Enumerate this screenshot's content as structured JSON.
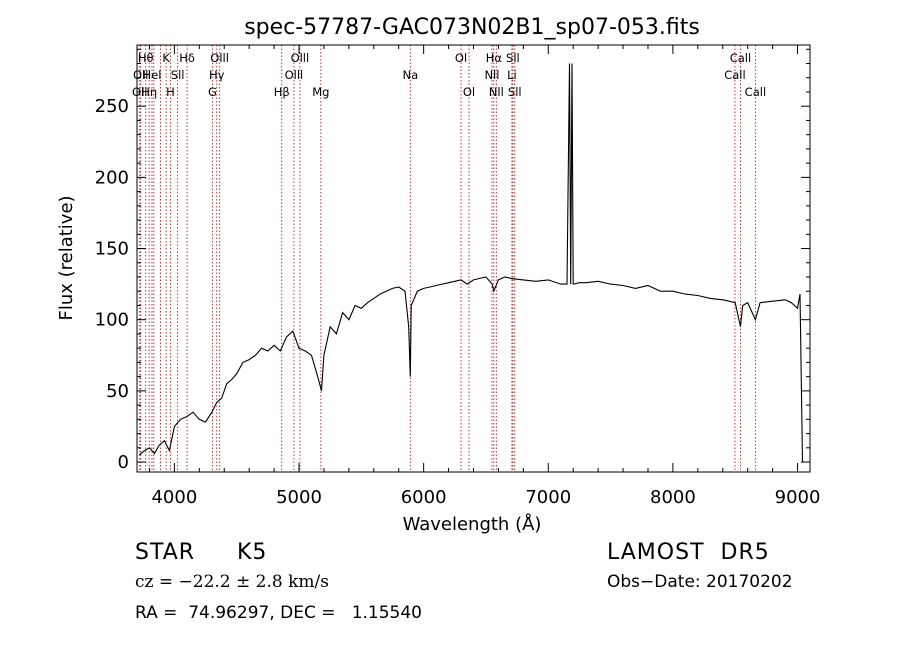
{
  "chart_data": {
    "type": "line",
    "title": "spec-57787-GAC073N02B1_sp07-053.fits",
    "xlabel": "Wavelength (Å)",
    "ylabel": "Flux (relative)",
    "xlim": [
      3700,
      9100
    ],
    "ylim": [
      -7,
      293
    ],
    "x_ticks": [
      4000,
      5000,
      6000,
      7000,
      8000,
      9000
    ],
    "y_ticks": [
      0,
      50,
      100,
      150,
      200,
      250
    ],
    "grid": false,
    "line_color": "#000000",
    "marker_color": "#b22222",
    "series": [
      {
        "x": [
          3720,
          3760,
          3800,
          3840,
          3880,
          3920,
          3960,
          4000,
          4050,
          4100,
          4150,
          4200,
          4250,
          4300,
          4340,
          4380,
          4420,
          4460,
          4500,
          4550,
          4600,
          4650,
          4700,
          4750,
          4800,
          4850,
          4900,
          4950,
          5000,
          5050,
          5100,
          5150,
          5180,
          5200,
          5250,
          5300,
          5350,
          5400,
          5450,
          5500,
          5550,
          5600,
          5650,
          5700,
          5750,
          5800,
          5850,
          5880,
          5893,
          5900,
          5950,
          6000,
          6050,
          6100,
          6150,
          6200,
          6250,
          6300,
          6350,
          6400,
          6450,
          6500,
          6550,
          6563,
          6600,
          6650,
          6700,
          6800,
          6900,
          7000,
          7100,
          7150,
          7170,
          7180,
          7190,
          7200,
          7250,
          7300,
          7400,
          7500,
          7600,
          7700,
          7800,
          7900,
          8000,
          8100,
          8200,
          8300,
          8400,
          8450,
          8500,
          8542,
          8560,
          8600,
          8662,
          8700,
          8800,
          8900,
          8950,
          9000,
          9020,
          9040,
          9060
        ],
        "y": [
          5,
          8,
          10,
          6,
          12,
          15,
          8,
          25,
          30,
          32,
          35,
          30,
          28,
          35,
          42,
          45,
          55,
          58,
          62,
          70,
          72,
          75,
          80,
          78,
          82,
          78,
          88,
          92,
          80,
          78,
          75,
          60,
          50,
          75,
          95,
          90,
          105,
          100,
          110,
          108,
          112,
          115,
          118,
          120,
          122,
          123,
          120,
          95,
          60,
          110,
          120,
          122,
          123,
          124,
          125,
          126,
          127,
          128,
          125,
          128,
          129,
          130,
          125,
          120,
          128,
          130,
          129,
          128,
          127,
          128,
          125,
          125,
          280,
          125,
          280,
          125,
          126,
          126,
          127,
          125,
          124,
          122,
          124,
          120,
          120,
          118,
          117,
          115,
          114,
          113,
          112,
          95,
          110,
          112,
          100,
          112,
          113,
          114,
          112,
          108,
          118,
          0,
          0
        ]
      }
    ],
    "line_markers": [
      {
        "x": 3722,
        "label": "Oll",
        "row": 2
      },
      {
        "x": 3730,
        "label": "Oll",
        "row": 1
      },
      {
        "x": 3770,
        "label": "Hθ",
        "row": 0
      },
      {
        "x": 3798,
        "label": "Hη",
        "row": 2
      },
      {
        "x": 3820,
        "label": "Hel",
        "row": 1
      },
      {
        "x": 3835,
        "label": "",
        "row": 0
      },
      {
        "x": 3889,
        "label": "",
        "row": 0
      },
      {
        "x": 3934,
        "label": "K",
        "row": 0
      },
      {
        "x": 3968,
        "label": "H",
        "row": 2
      },
      {
        "x": 4026,
        "label": "Sll",
        "row": 1
      },
      {
        "x": 4102,
        "label": "Hδ",
        "row": 0
      },
      {
        "x": 4305,
        "label": "G",
        "row": 2
      },
      {
        "x": 4340,
        "label": "Hγ",
        "row": 1
      },
      {
        "x": 4363,
        "label": "Olll",
        "row": 0
      },
      {
        "x": 4861,
        "label": "Hβ",
        "row": 2
      },
      {
        "x": 4959,
        "label": "Olll",
        "row": 1
      },
      {
        "x": 5007,
        "label": "Olll",
        "row": 0
      },
      {
        "x": 5175,
        "label": "Mg",
        "row": 2
      },
      {
        "x": 5893,
        "label": "Na",
        "row": 1
      },
      {
        "x": 6300,
        "label": "Ol",
        "row": 0
      },
      {
        "x": 6364,
        "label": "Ol",
        "row": 2
      },
      {
        "x": 6548,
        "label": "Nll",
        "row": 1
      },
      {
        "x": 6563,
        "label": "Hα",
        "row": 0
      },
      {
        "x": 6583,
        "label": "Nll",
        "row": 2
      },
      {
        "x": 6708,
        "label": "Li",
        "row": 1
      },
      {
        "x": 6716,
        "label": "Sll",
        "row": 0
      },
      {
        "x": 6731,
        "label": "Sll",
        "row": 2
      },
      {
        "x": 8498,
        "label": "Call",
        "row": 1
      },
      {
        "x": 8542,
        "label": "Call",
        "row": 0
      },
      {
        "x": 8662,
        "label": "Call",
        "row": 2
      }
    ]
  },
  "info": {
    "object_class": "STAR",
    "subclass": "K5",
    "survey": "LAMOST  DR5",
    "redshift": "cz = −22.2 ± 2.8 km/s",
    "obs_date": "Obs−Date: 20170202",
    "coords": "RA =  74.96297, DEC =   1.15540"
  }
}
